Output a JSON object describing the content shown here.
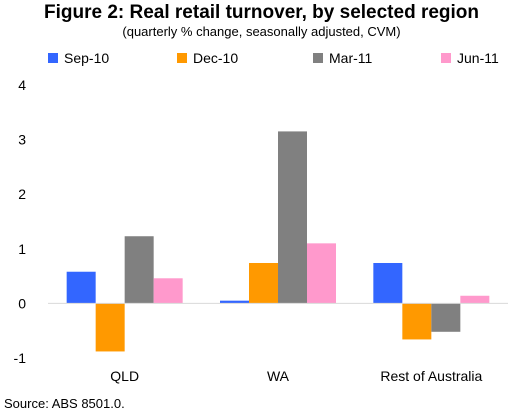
{
  "chart_data": {
    "type": "bar",
    "title": "Figure 2: Real retail turnover, by selected region",
    "subtitle": "(quarterly % change, seasonally adjusted, CVM)",
    "categories": [
      "QLD",
      "WA",
      "Rest of Australia"
    ],
    "series": [
      {
        "name": "Sep-10",
        "color": "#3366ff",
        "values": [
          0.58,
          0.05,
          0.74
        ]
      },
      {
        "name": "Dec-10",
        "color": "#ff9900",
        "values": [
          -0.88,
          0.74,
          -0.66
        ]
      },
      {
        "name": "Mar-11",
        "color": "#808080",
        "values": [
          1.23,
          3.15,
          -0.52
        ]
      },
      {
        "name": "Jun-11",
        "color": "#ff99cc",
        "values": [
          0.46,
          1.1,
          0.14
        ]
      }
    ],
    "ylim": [
      -1,
      4
    ],
    "yticks": [
      -1,
      0,
      1,
      2,
      3,
      4
    ],
    "xlabel": "",
    "ylabel": "",
    "grid": false,
    "legend_position": "top"
  },
  "source": "Source: ABS 8501.0."
}
